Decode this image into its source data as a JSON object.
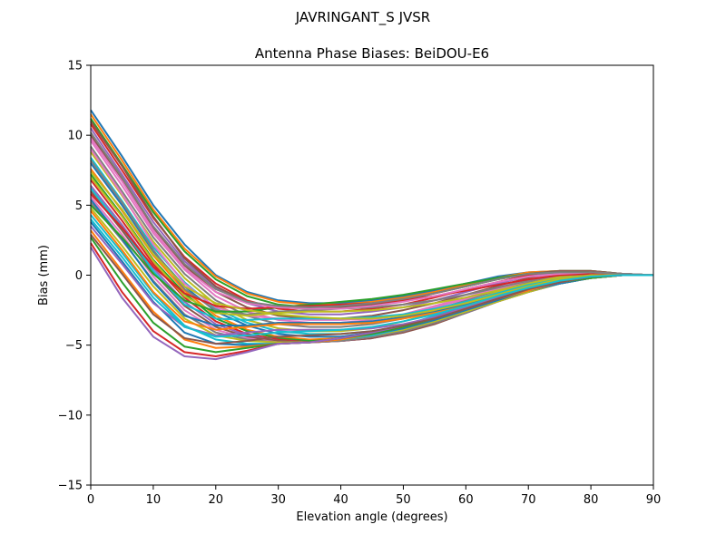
{
  "suptitle": "JAVRINGANT_S    JVSR",
  "chart_data": {
    "type": "line",
    "title": "Antenna Phase Biases: BeiDOU-E6",
    "xlabel": "Elevation angle (degrees)",
    "ylabel": "Bias (mm)",
    "xlim": [
      0,
      90
    ],
    "ylim": [
      -15,
      15
    ],
    "x": [
      0,
      5,
      10,
      15,
      20,
      25,
      30,
      35,
      40,
      45,
      50,
      55,
      60,
      65,
      70,
      75,
      80,
      85,
      90
    ],
    "xticks": [
      0,
      10,
      20,
      30,
      40,
      50,
      60,
      70,
      80,
      90
    ],
    "xtick_labels": [
      "0",
      "10",
      "20",
      "30",
      "40",
      "50",
      "60",
      "70",
      "80",
      "90"
    ],
    "yticks": [
      -15,
      -10,
      -5,
      0,
      5,
      10,
      15
    ],
    "ytick_labels": [
      "−15",
      "−10",
      "−5",
      "0",
      "5",
      "10",
      "15"
    ],
    "grid": false,
    "legend": "none",
    "series_colors": [
      "#1f77b4",
      "#ff7f0e",
      "#2ca02c",
      "#d62728",
      "#9467bd",
      "#8c564b",
      "#e377c2",
      "#7f7f7f",
      "#bcbd22",
      "#17becf"
    ],
    "series": [
      {
        "values": [
          11.8,
          8.5,
          5.0,
          2.2,
          0.0,
          -1.2,
          -1.8,
          -2.0,
          -2.0,
          -1.8,
          -1.5,
          -1.1,
          -0.6,
          -0.1,
          0.2,
          0.3,
          0.3,
          0.1,
          0.0
        ]
      },
      {
        "values": [
          11.5,
          8.2,
          4.7,
          1.9,
          -0.1,
          -1.3,
          -1.9,
          -2.1,
          -2.1,
          -1.9,
          -1.6,
          -1.2,
          -0.7,
          -0.2,
          0.2,
          0.3,
          0.3,
          0.1,
          0.0
        ]
      },
      {
        "values": [
          11.2,
          7.9,
          4.5,
          1.7,
          -0.3,
          -1.5,
          -2.1,
          -2.3,
          -2.3,
          -2.1,
          -1.8,
          -1.3,
          -0.8,
          -0.3,
          0.1,
          0.3,
          0.3,
          0.1,
          0.0
        ]
      },
      {
        "values": [
          10.8,
          7.5,
          4.1,
          1.3,
          -0.6,
          -1.8,
          -2.4,
          -2.6,
          -2.6,
          -2.4,
          -2.1,
          -1.6,
          -1.0,
          -0.5,
          0.0,
          0.2,
          0.2,
          0.1,
          0.0
        ]
      },
      {
        "values": [
          10.5,
          7.2,
          3.8,
          1.0,
          -0.9,
          -2.0,
          -2.6,
          -2.8,
          -2.8,
          -2.6,
          -2.3,
          -1.8,
          -1.2,
          -0.6,
          -0.1,
          0.2,
          0.2,
          0.1,
          0.0
        ]
      },
      {
        "values": [
          10.0,
          6.8,
          3.4,
          0.7,
          -1.2,
          -2.3,
          -2.9,
          -3.1,
          -3.1,
          -2.9,
          -2.5,
          -2.0,
          -1.4,
          -0.8,
          -0.2,
          0.1,
          0.2,
          0.1,
          0.0
        ]
      },
      {
        "values": [
          9.6,
          6.4,
          3.0,
          0.4,
          -1.5,
          -2.6,
          -3.2,
          -3.4,
          -3.4,
          -3.2,
          -2.8,
          -2.2,
          -1.6,
          -0.9,
          -0.3,
          0.1,
          0.2,
          0.1,
          0.0
        ]
      },
      {
        "values": [
          9.2,
          6.0,
          2.7,
          0.1,
          -1.8,
          -2.9,
          -3.5,
          -3.7,
          -3.7,
          -3.5,
          -3.1,
          -2.5,
          -1.8,
          -1.1,
          -0.5,
          0.0,
          0.1,
          0.1,
          0.0
        ]
      },
      {
        "values": [
          8.8,
          5.7,
          2.4,
          -0.2,
          -2.1,
          -3.2,
          -3.8,
          -4.0,
          -4.0,
          -3.8,
          -3.3,
          -2.7,
          -2.0,
          -1.2,
          -0.6,
          -0.1,
          0.1,
          0.1,
          0.0
        ]
      },
      {
        "values": [
          8.4,
          5.3,
          2.0,
          -0.5,
          -2.4,
          -3.4,
          -4.0,
          -4.2,
          -4.2,
          -4.0,
          -3.6,
          -2.9,
          -2.2,
          -1.4,
          -0.7,
          -0.2,
          0.0,
          0.1,
          0.0
        ]
      },
      {
        "values": [
          8.0,
          5.0,
          1.7,
          -0.8,
          -2.6,
          -3.6,
          -4.2,
          -4.4,
          -4.4,
          -4.1,
          -3.7,
          -3.0,
          -2.3,
          -1.5,
          -0.8,
          -0.3,
          0.0,
          0.0,
          0.0
        ]
      },
      {
        "values": [
          7.6,
          4.6,
          1.4,
          -1.1,
          -2.9,
          -3.9,
          -4.4,
          -4.6,
          -4.5,
          -4.3,
          -3.8,
          -3.2,
          -2.4,
          -1.6,
          -0.9,
          -0.4,
          -0.1,
          0.0,
          0.0
        ]
      },
      {
        "values": [
          7.2,
          4.3,
          1.1,
          -1.3,
          -3.1,
          -4.0,
          -4.5,
          -4.7,
          -4.6,
          -4.4,
          -3.9,
          -3.3,
          -2.5,
          -1.7,
          -1.0,
          -0.5,
          -0.1,
          0.0,
          0.0
        ]
      },
      {
        "values": [
          6.8,
          3.9,
          0.8,
          -1.6,
          -3.3,
          -4.2,
          -4.6,
          -4.8,
          -4.7,
          -4.5,
          -4.0,
          -3.4,
          -2.6,
          -1.8,
          -1.1,
          -0.5,
          -0.2,
          0.0,
          0.0
        ]
      },
      {
        "values": [
          6.4,
          3.6,
          0.5,
          -1.9,
          -3.5,
          -4.3,
          -4.7,
          -4.8,
          -4.7,
          -4.5,
          -4.1,
          -3.4,
          -2.7,
          -1.9,
          -1.1,
          -0.6,
          -0.2,
          0.0,
          0.0
        ]
      },
      {
        "values": [
          6.0,
          3.2,
          0.2,
          -2.2,
          -3.7,
          -4.4,
          -4.7,
          -4.8,
          -4.7,
          -4.5,
          -4.1,
          -3.5,
          -2.7,
          -1.9,
          -1.2,
          -0.6,
          -0.2,
          0.0,
          0.0
        ]
      },
      {
        "values": [
          5.6,
          2.9,
          -0.1,
          -2.5,
          -3.9,
          -4.5,
          -4.8,
          -4.8,
          -4.7,
          -4.4,
          -4.0,
          -3.4,
          -2.7,
          -1.9,
          -1.2,
          -0.6,
          -0.2,
          0.0,
          0.0
        ]
      },
      {
        "values": [
          5.2,
          2.5,
          -0.4,
          -2.8,
          -4.1,
          -4.6,
          -4.8,
          -4.8,
          -4.7,
          -4.4,
          -4.0,
          -3.4,
          -2.7,
          -1.9,
          -1.2,
          -0.6,
          -0.2,
          0.0,
          0.0
        ]
      },
      {
        "values": [
          4.8,
          2.1,
          -0.8,
          -3.1,
          -4.3,
          -4.7,
          -4.8,
          -4.8,
          -4.6,
          -4.3,
          -3.9,
          -3.3,
          -2.6,
          -1.9,
          -1.2,
          -0.6,
          -0.2,
          0.0,
          0.0
        ]
      },
      {
        "values": [
          4.3,
          1.6,
          -1.3,
          -3.6,
          -4.6,
          -4.9,
          -4.9,
          -4.8,
          -4.6,
          -4.3,
          -3.8,
          -3.2,
          -2.5,
          -1.8,
          -1.1,
          -0.6,
          -0.2,
          0.0,
          0.0
        ]
      },
      {
        "values": [
          3.8,
          1.0,
          -1.9,
          -4.1,
          -4.9,
          -5.0,
          -4.9,
          -4.8,
          -4.6,
          -4.2,
          -3.8,
          -3.2,
          -2.5,
          -1.8,
          -1.1,
          -0.6,
          -0.2,
          0.0,
          0.0
        ]
      },
      {
        "values": [
          3.2,
          0.3,
          -2.6,
          -4.6,
          -5.2,
          -5.1,
          -4.9,
          -4.8,
          -4.6,
          -4.2,
          -3.7,
          -3.1,
          -2.4,
          -1.7,
          -1.1,
          -0.5,
          -0.2,
          0.0,
          0.0
        ]
      },
      {
        "values": [
          2.7,
          -0.5,
          -3.4,
          -5.1,
          -5.5,
          -5.2,
          -4.9,
          -4.8,
          -4.5,
          -4.2,
          -3.7,
          -3.1,
          -2.4,
          -1.7,
          -1.0,
          -0.5,
          -0.2,
          0.0,
          0.0
        ]
      },
      {
        "values": [
          2.3,
          -1.2,
          -4.0,
          -5.5,
          -5.8,
          -5.4,
          -4.9,
          -4.8,
          -4.5,
          -4.1,
          -3.6,
          -3.0,
          -2.3,
          -1.6,
          -1.0,
          -0.5,
          -0.1,
          0.0,
          0.0
        ]
      },
      {
        "values": [
          2.0,
          -1.6,
          -4.4,
          -5.8,
          -6.0,
          -5.5,
          -4.9,
          -4.8,
          -4.5,
          -4.1,
          -3.6,
          -3.0,
          -2.3,
          -1.6,
          -1.0,
          -0.5,
          -0.1,
          0.0,
          0.0
        ]
      },
      {
        "values": [
          11.0,
          7.8,
          4.2,
          1.2,
          -0.8,
          -1.9,
          -2.3,
          -2.4,
          -2.3,
          -2.1,
          -1.8,
          -1.3,
          -0.8,
          -0.3,
          0.1,
          0.3,
          0.3,
          0.1,
          0.0
        ]
      },
      {
        "values": [
          9.0,
          5.8,
          2.2,
          -0.6,
          -2.3,
          -2.9,
          -3.1,
          -3.2,
          -3.2,
          -3.1,
          -2.8,
          -2.3,
          -1.7,
          -1.0,
          -0.4,
          0.0,
          0.1,
          0.1,
          0.0
        ]
      },
      {
        "values": [
          8.2,
          5.2,
          1.8,
          -1.0,
          -2.5,
          -2.8,
          -2.6,
          -2.5,
          -2.4,
          -2.3,
          -2.1,
          -1.8,
          -1.4,
          -0.9,
          -0.4,
          0.0,
          0.1,
          0.1,
          0.0
        ]
      },
      {
        "values": [
          7.0,
          4.2,
          1.0,
          -1.5,
          -2.7,
          -2.9,
          -2.7,
          -2.6,
          -2.6,
          -2.5,
          -2.3,
          -2.0,
          -1.6,
          -1.1,
          -0.6,
          -0.2,
          0.0,
          0.0,
          0.0
        ]
      },
      {
        "values": [
          6.2,
          3.4,
          0.3,
          -2.1,
          -3.1,
          -3.2,
          -3.1,
          -3.1,
          -3.1,
          -3.0,
          -2.8,
          -2.4,
          -1.9,
          -1.3,
          -0.7,
          -0.3,
          0.0,
          0.0,
          0.0
        ]
      },
      {
        "values": [
          5.4,
          2.6,
          -0.5,
          -2.9,
          -3.6,
          -3.6,
          -3.4,
          -3.4,
          -3.4,
          -3.3,
          -3.0,
          -2.6,
          -2.1,
          -1.5,
          -0.9,
          -0.4,
          -0.1,
          0.0,
          0.0
        ]
      },
      {
        "values": [
          4.6,
          1.8,
          -1.2,
          -3.3,
          -3.9,
          -3.7,
          -3.5,
          -3.5,
          -3.5,
          -3.4,
          -3.1,
          -2.7,
          -2.2,
          -1.5,
          -0.9,
          -0.4,
          -0.1,
          0.0,
          0.0
        ]
      },
      {
        "values": [
          5.0,
          2.7,
          0.1,
          -1.8,
          -2.6,
          -2.6,
          -2.3,
          -2.1,
          -1.9,
          -1.7,
          -1.4,
          -1.0,
          -0.6,
          -0.2,
          0.1,
          0.2,
          0.2,
          0.1,
          0.0
        ]
      },
      {
        "values": [
          5.8,
          3.4,
          0.6,
          -1.3,
          -2.2,
          -2.4,
          -2.3,
          -2.2,
          -2.1,
          -2.0,
          -1.8,
          -1.5,
          -1.1,
          -0.7,
          -0.3,
          0.0,
          0.1,
          0.0,
          0.0
        ]
      },
      {
        "values": [
          3.5,
          0.8,
          -2.0,
          -3.7,
          -4.3,
          -4.1,
          -3.9,
          -3.9,
          -3.9,
          -3.8,
          -3.5,
          -3.0,
          -2.4,
          -1.7,
          -1.0,
          -0.5,
          -0.1,
          0.0,
          0.0
        ]
      },
      {
        "values": [
          2.9,
          0.1,
          -2.8,
          -4.5,
          -4.9,
          -4.7,
          -4.4,
          -4.3,
          -4.2,
          -4.0,
          -3.6,
          -3.1,
          -2.4,
          -1.7,
          -1.0,
          -0.5,
          -0.1,
          0.0,
          0.0
        ]
      },
      {
        "values": [
          9.8,
          6.7,
          3.2,
          0.5,
          -1.2,
          -2.0,
          -2.3,
          -2.4,
          -2.4,
          -2.2,
          -1.9,
          -1.5,
          -1.0,
          -0.5,
          -0.1,
          0.1,
          0.2,
          0.1,
          0.0
        ]
      },
      {
        "values": [
          10.2,
          7.0,
          3.5,
          0.8,
          -1.0,
          -1.9,
          -2.2,
          -2.3,
          -2.2,
          -2.0,
          -1.7,
          -1.3,
          -0.8,
          -0.3,
          0.1,
          0.2,
          0.2,
          0.1,
          0.0
        ]
      },
      {
        "values": [
          7.4,
          4.7,
          1.5,
          -0.8,
          -2.0,
          -2.5,
          -2.8,
          -3.0,
          -3.1,
          -3.1,
          -2.9,
          -2.5,
          -2.0,
          -1.4,
          -0.8,
          -0.3,
          0.0,
          0.0,
          0.0
        ]
      },
      {
        "values": [
          4.0,
          1.3,
          -1.6,
          -3.7,
          -4.4,
          -4.3,
          -4.1,
          -4.0,
          -3.9,
          -3.7,
          -3.3,
          -2.8,
          -2.2,
          -1.5,
          -0.9,
          -0.4,
          -0.1,
          0.0,
          0.0
        ]
      }
    ]
  }
}
